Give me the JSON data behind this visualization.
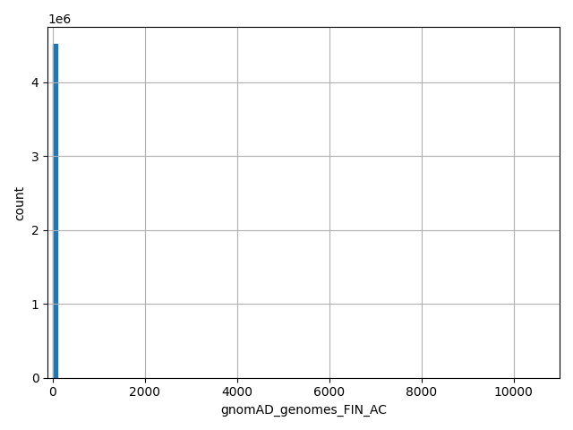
{
  "xlabel": "gnomAD_genomes_FIN_AC",
  "ylabel": "count",
  "bar_color": "#1f77b4",
  "bar_edge_color": "#1f77b4",
  "xlim": [
    -110,
    11000
  ],
  "ylim": [
    0,
    4750000
  ],
  "yticks": [
    0,
    1000000,
    2000000,
    3000000,
    4000000
  ],
  "xticks": [
    0,
    2000,
    4000,
    6000,
    8000,
    10000
  ],
  "first_bar_height": 4520000,
  "bin_width": 110,
  "grid": true,
  "figsize": [
    6.4,
    4.8
  ],
  "dpi": 100
}
